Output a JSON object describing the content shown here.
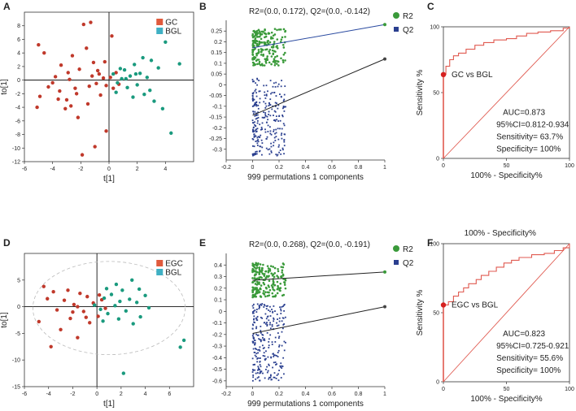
{
  "figure": {
    "chart_data": [
      {
        "id": "A",
        "type": "scatter",
        "panel_label": "A",
        "xlabel": "t[1]",
        "ylabel": "to[1]",
        "xlim": [
          -6,
          6
        ],
        "ylim": [
          -12,
          10
        ],
        "xticks": [
          -6,
          -4,
          -2,
          0,
          2,
          4
        ],
        "yticks": [
          -12,
          -10,
          -8,
          -6,
          -4,
          -2,
          0,
          2,
          4,
          6,
          8
        ],
        "ellipse": false,
        "legend": [
          {
            "name": "GC",
            "color": "#e05a3c"
          },
          {
            "name": "BGL",
            "color": "#3fb0c4"
          }
        ],
        "series": [
          {
            "name": "GC",
            "color": "#c0392b",
            "points": [
              [
                -5,
                5.2
              ],
              [
                -4.6,
                4
              ],
              [
                -4.3,
                -1
              ],
              [
                -4.9,
                -2.4
              ],
              [
                -5.1,
                -4
              ],
              [
                -3.8,
                0.5
              ],
              [
                -3.4,
                2.2
              ],
              [
                -3.5,
                -1.6
              ],
              [
                -3,
                -2.9
              ],
              [
                -2.8,
                0.1
              ],
              [
                -2.6,
                3.6
              ],
              [
                -2.4,
                -1.2
              ],
              [
                -2.1,
                1.6
              ],
              [
                -1.8,
                8.2
              ],
              [
                -1.6,
                4.7
              ],
              [
                -1.5,
                -3.5
              ],
              [
                -1.2,
                0.6
              ],
              [
                -0.9,
                -0.5
              ],
              [
                -0.8,
                1.4
              ],
              [
                -0.6,
                -2.2
              ],
              [
                -0.4,
                0.3
              ],
              [
                -0.3,
                2.7
              ],
              [
                -0.2,
                -0.8
              ],
              [
                0.1,
                0.4
              ],
              [
                0.3,
                -1.2
              ],
              [
                0.5,
                1.1
              ],
              [
                0.7,
                -0.6
              ],
              [
                -1.9,
                -11
              ],
              [
                -2.2,
                -5.5
              ],
              [
                -3.1,
                -4.2
              ],
              [
                -0.2,
                -7.5
              ],
              [
                -1,
                -9.8
              ],
              [
                -4,
                -0.4
              ],
              [
                -2.9,
                1.1
              ],
              [
                -1.4,
                -0.9
              ],
              [
                -0.7,
                0.9
              ],
              [
                -2.3,
                -2
              ],
              [
                -1.1,
                2.6
              ],
              [
                0.2,
                6.5
              ],
              [
                -1.3,
                8.5
              ],
              [
                -2.7,
                -3.8
              ],
              [
                -3.6,
                -2.8
              ]
            ]
          },
          {
            "name": "BGL",
            "color": "#1a9a7e",
            "points": [
              [
                0.3,
                0.9
              ],
              [
                0.6,
                -0.4
              ],
              [
                0.9,
                0.2
              ],
              [
                1.1,
                1.5
              ],
              [
                1.3,
                -1.1
              ],
              [
                1.5,
                0.6
              ],
              [
                1.8,
                2.3
              ],
              [
                2,
                -0.7
              ],
              [
                2.2,
                1
              ],
              [
                2.5,
                -2.1
              ],
              [
                2.7,
                0.4
              ],
              [
                3,
                2.9
              ],
              [
                3.2,
                -3.1
              ],
              [
                3.5,
                1.8
              ],
              [
                3.8,
                -4.2
              ],
              [
                4,
                5.6
              ],
              [
                4.4,
                -7.8
              ],
              [
                5,
                2.4
              ],
              [
                1.7,
                -2.5
              ],
              [
                2.4,
                3.3
              ],
              [
                0.8,
                1.7
              ],
              [
                1.2,
                0.2
              ],
              [
                2.9,
                -1.5
              ],
              [
                0.5,
                -1.8
              ],
              [
                1.9,
                0.9
              ]
            ]
          }
        ]
      },
      {
        "id": "B",
        "type": "scatter",
        "panel_label": "B",
        "title": "R2=(0.0, 0.172), Q2=(0.0, -0.142)",
        "xlabel": "999 permutations 1 components",
        "ylabel": "",
        "xlim": [
          -0.2,
          1
        ],
        "ylim": [
          -0.35,
          0.3
        ],
        "xticks": [
          -0.2,
          0,
          0.2,
          0.4,
          0.6,
          0.8,
          1
        ],
        "yticks": [
          -0.3,
          -0.25,
          -0.2,
          -0.15,
          -0.1,
          -0.05,
          0,
          0.05,
          0.1,
          0.15,
          0.2,
          0.25
        ],
        "legend": [
          {
            "name": "R2",
            "color": "#3a9a3a"
          },
          {
            "name": "Q2",
            "color": "#2a3f8f"
          }
        ],
        "regression": [
          {
            "name": "R2",
            "color": "#2a4aa0",
            "x": [
              0,
              1
            ],
            "y": [
              0.172,
              0.28
            ]
          },
          {
            "name": "Q2",
            "color": "#222222",
            "x": [
              0,
              1
            ],
            "y": [
              -0.142,
              0.12
            ]
          }
        ],
        "bands": [
          {
            "name": "R2",
            "color": "#3a9a3a",
            "x_range": [
              0,
              0.25
            ],
            "y_range": [
              0.09,
              0.26
            ]
          },
          {
            "name": "Q2",
            "color": "#2a3f8f",
            "x_range": [
              0,
              0.25
            ],
            "y_range": [
              -0.33,
              0.03
            ]
          }
        ],
        "original": [
          {
            "name": "R2",
            "x": 1,
            "y": 0.28
          },
          {
            "name": "Q2",
            "x": 1,
            "y": 0.12
          }
        ]
      },
      {
        "id": "C",
        "type": "line",
        "panel_label": "C",
        "xlabel": "100% - Specificity%",
        "ylabel": "Sensitivity %",
        "xlim": [
          0,
          100
        ],
        "ylim": [
          0,
          100
        ],
        "xticks": [
          0,
          50,
          100
        ],
        "yticks": [
          0,
          50,
          100
        ],
        "roc": [
          [
            0,
            63.7
          ],
          [
            2,
            70
          ],
          [
            5,
            75
          ],
          [
            8,
            78
          ],
          [
            12,
            80
          ],
          [
            18,
            83
          ],
          [
            25,
            86
          ],
          [
            32,
            88
          ],
          [
            40,
            90
          ],
          [
            50,
            91
          ],
          [
            58,
            93
          ],
          [
            66,
            95
          ],
          [
            75,
            96
          ],
          [
            85,
            97
          ],
          [
            95,
            99
          ],
          [
            100,
            100
          ]
        ],
        "highlight_point": [
          0,
          63.7
        ],
        "label": "GC vs BGL",
        "stats": [
          "AUC=0.873",
          "95%CI=0.812-0.934",
          "Sensitivity= 63.7%",
          "Specificity= 100%"
        ]
      },
      {
        "id": "D",
        "type": "scatter",
        "panel_label": "D",
        "xlabel": "t[1]",
        "ylabel": "to[1]",
        "xlim": [
          -6,
          8
        ],
        "ylim": [
          -15,
          10
        ],
        "xticks": [
          -6,
          -4,
          -2,
          0,
          2,
          4,
          6
        ],
        "yticks": [
          -15,
          -10,
          -5,
          0,
          5
        ],
        "ellipse": true,
        "legend": [
          {
            "name": "EGC",
            "color": "#e05a3c"
          },
          {
            "name": "BGL",
            "color": "#3fb0c4"
          }
        ],
        "series": [
          {
            "name": "EGC",
            "color": "#c0392b",
            "points": [
              [
                -4.4,
                3.8
              ],
              [
                -4.1,
                1.5
              ],
              [
                -4.8,
                -2.8
              ],
              [
                -3.6,
                2.8
              ],
              [
                -3.3,
                -0.6
              ],
              [
                -3,
                -4.3
              ],
              [
                -2.7,
                1.2
              ],
              [
                -2.4,
                3.1
              ],
              [
                -2.2,
                -2.2
              ],
              [
                -1.9,
                0.4
              ],
              [
                -1.6,
                -5.8
              ],
              [
                -1.4,
                2.5
              ],
              [
                -1.1,
                -0.9
              ],
              [
                -0.8,
                1.9
              ],
              [
                -0.6,
                -3
              ],
              [
                -0.3,
                0.7
              ],
              [
                0.1,
                -1.8
              ],
              [
                0.4,
                1.3
              ],
              [
                0.7,
                -0.3
              ],
              [
                -3.8,
                -7.5
              ],
              [
                -2,
                -1
              ],
              [
                -0.9,
                -2
              ],
              [
                -1.6,
                0
              ],
              [
                0.2,
                2.2
              ]
            ]
          },
          {
            "name": "BGL",
            "color": "#1a9a7e",
            "points": [
              [
                -0.2,
                0.3
              ],
              [
                0.3,
                -0.5
              ],
              [
                0.6,
                1.6
              ],
              [
                0.9,
                -1.3
              ],
              [
                1.2,
                2.3
              ],
              [
                1.5,
                0.2
              ],
              [
                1.8,
                -2.3
              ],
              [
                2.1,
                3.1
              ],
              [
                2.4,
                -0.8
              ],
              [
                2.7,
                1.4
              ],
              [
                3,
                -3.2
              ],
              [
                3.3,
                0.8
              ],
              [
                3.6,
                -1.9
              ],
              [
                4,
                2.1
              ],
              [
                4.3,
                -0.2
              ],
              [
                2.2,
                -12.5
              ],
              [
                7.2,
                -6.3
              ],
              [
                6.9,
                -7.6
              ],
              [
                1.6,
                4.2
              ],
              [
                0.8,
                3.4
              ],
              [
                2.9,
                5
              ],
              [
                0.5,
                -2.7
              ],
              [
                1.9,
                1
              ],
              [
                3.5,
                3.3
              ]
            ]
          }
        ]
      },
      {
        "id": "E",
        "type": "scatter",
        "panel_label": "E",
        "title": "R2=(0.0, 0.268), Q2=(0.0, -0.191)",
        "xlabel": "999 permutations 1 components",
        "ylabel": "",
        "xlim": [
          -0.2,
          1
        ],
        "ylim": [
          -0.65,
          0.5
        ],
        "xticks": [
          -0.2,
          0,
          0.2,
          0.4,
          0.6,
          0.8,
          1
        ],
        "yticks": [
          -0.6,
          -0.5,
          -0.4,
          -0.3,
          -0.2,
          -0.1,
          0,
          0.1,
          0.2,
          0.3,
          0.4
        ],
        "legend": [
          {
            "name": "R2",
            "color": "#3a9a3a"
          },
          {
            "name": "Q2",
            "color": "#2a3f8f"
          }
        ],
        "regression": [
          {
            "name": "R2",
            "color": "#222222",
            "x": [
              0,
              1
            ],
            "y": [
              0.268,
              0.34
            ]
          },
          {
            "name": "Q2",
            "color": "#222222",
            "x": [
              0,
              1
            ],
            "y": [
              -0.191,
              0.04
            ]
          }
        ],
        "bands": [
          {
            "name": "R2",
            "color": "#3a9a3a",
            "x_range": [
              0,
              0.25
            ],
            "y_range": [
              0.12,
              0.42
            ]
          },
          {
            "name": "Q2",
            "color": "#2a3f8f",
            "x_range": [
              0,
              0.25
            ],
            "y_range": [
              -0.6,
              0.08
            ]
          }
        ],
        "original": [
          {
            "name": "R2",
            "x": 1,
            "y": 0.34
          },
          {
            "name": "Q2",
            "x": 1,
            "y": 0.04
          }
        ]
      },
      {
        "id": "F",
        "type": "line",
        "panel_label": "F",
        "title": "100% - Specificity%",
        "xlabel": "100% - Specificity%",
        "ylabel": "Sensitivity %",
        "xlim": [
          0,
          100
        ],
        "ylim": [
          0,
          100
        ],
        "xticks": [
          0,
          50,
          100
        ],
        "yticks": [
          0,
          50,
          100
        ],
        "roc": [
          [
            0,
            55.6
          ],
          [
            4,
            58
          ],
          [
            8,
            62
          ],
          [
            12,
            65
          ],
          [
            16,
            68
          ],
          [
            20,
            71
          ],
          [
            26,
            74
          ],
          [
            30,
            77
          ],
          [
            36,
            80
          ],
          [
            42,
            83
          ],
          [
            48,
            86
          ],
          [
            54,
            88
          ],
          [
            60,
            90
          ],
          [
            70,
            92
          ],
          [
            80,
            93
          ],
          [
            88,
            95
          ],
          [
            95,
            97
          ],
          [
            100,
            100
          ]
        ],
        "highlight_point": [
          0,
          55.6
        ],
        "label": "EGC vs BGL",
        "stats": [
          "AUC=0.823",
          "95%CI=0.725-0.921",
          "Sensitivity= 55.6%",
          "Specificity= 100%"
        ]
      }
    ]
  }
}
